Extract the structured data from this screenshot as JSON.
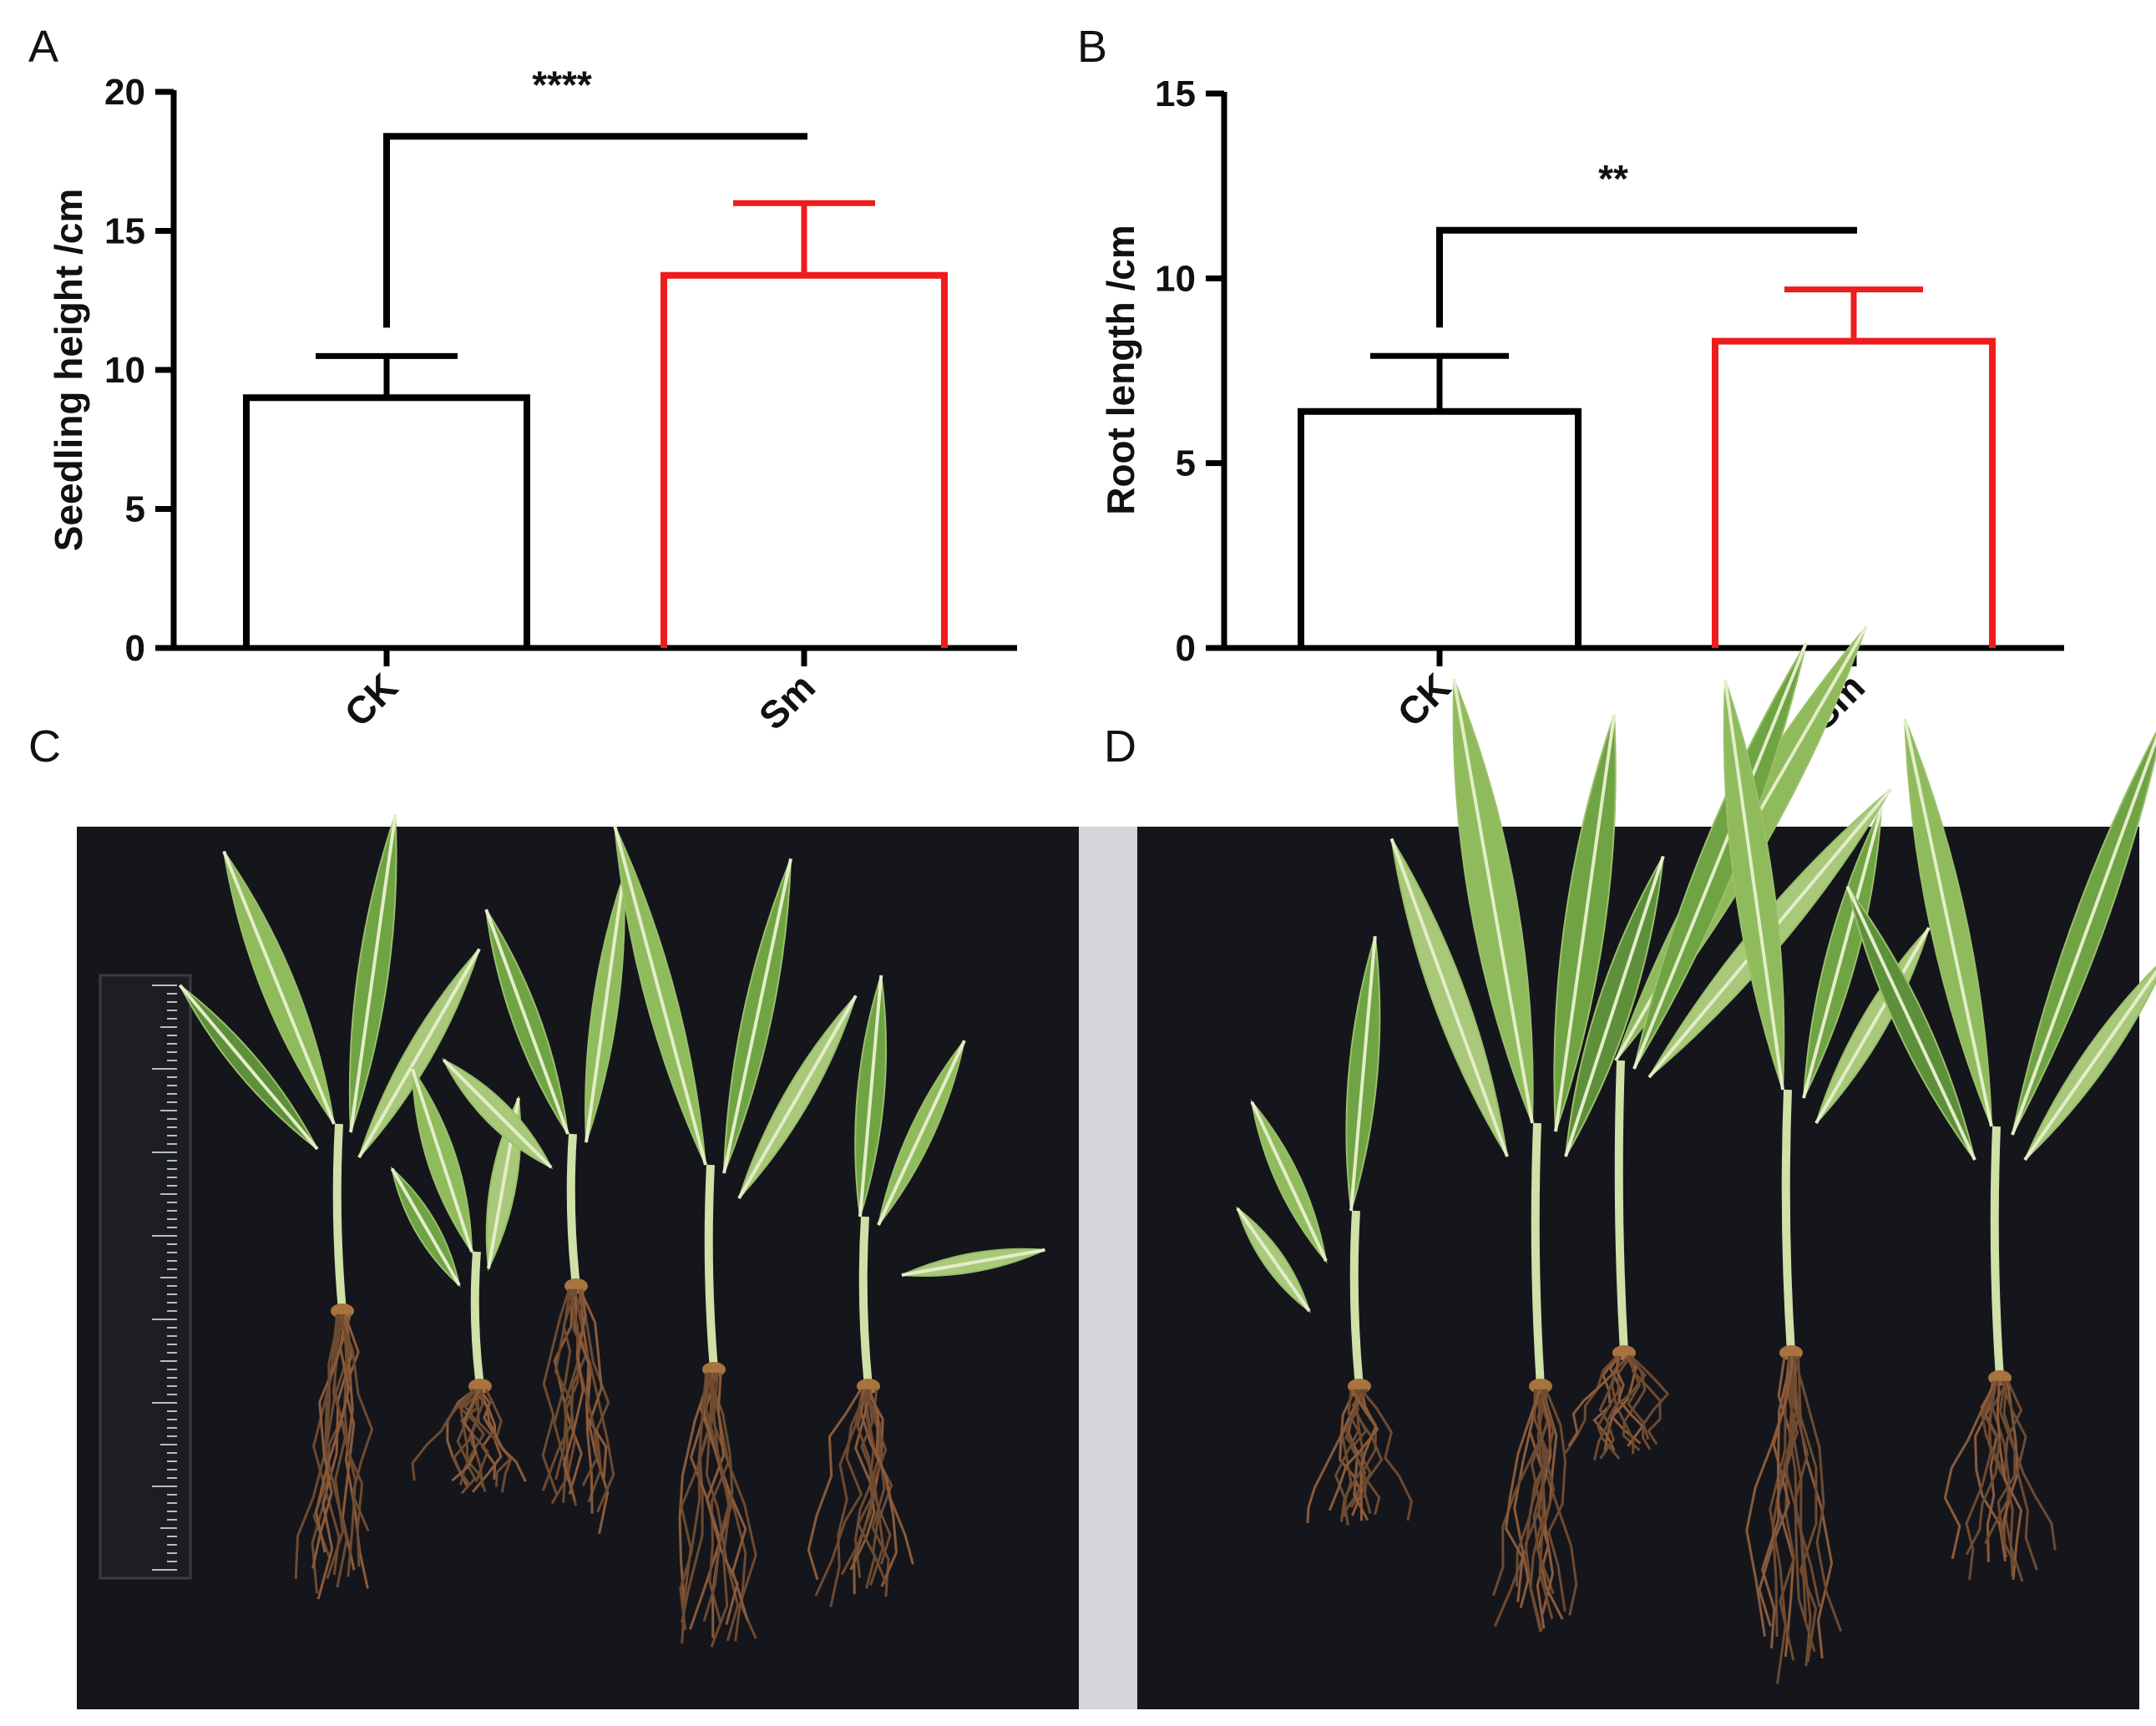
{
  "panels": {
    "A": "A",
    "B": "B",
    "C": "C",
    "D": "D"
  },
  "chart_data": [
    {
      "panel": "A",
      "type": "bar",
      "categories": [
        "CK",
        "Sm"
      ],
      "values": [
        9.0,
        13.4
      ],
      "errors": [
        1.5,
        2.6
      ],
      "colors": [
        "#000000",
        "#ee1c1c"
      ],
      "xlabel": "",
      "ylabel": "Seedling height /cm",
      "ylim": [
        0,
        20
      ],
      "yticks": [
        "0",
        "5",
        "10",
        "15",
        "20"
      ],
      "significance": "****",
      "significance_bracket_top": 18.4
    },
    {
      "panel": "B",
      "type": "bar",
      "categories": [
        "CK",
        "Sm"
      ],
      "values": [
        6.4,
        8.3
      ],
      "errors": [
        1.5,
        1.4
      ],
      "colors": [
        "#000000",
        "#ee1c1c"
      ],
      "xlabel": "",
      "ylabel": "Root length /cm",
      "ylim": [
        0,
        15
      ],
      "yticks": [
        "0",
        "5",
        "10",
        "15"
      ],
      "significance": "**",
      "significance_bracket_top": 11.3
    }
  ],
  "photos": {
    "background_color": "#15161c",
    "divider_color": "#d4d5da",
    "ruler_color": "#1d1e22"
  }
}
